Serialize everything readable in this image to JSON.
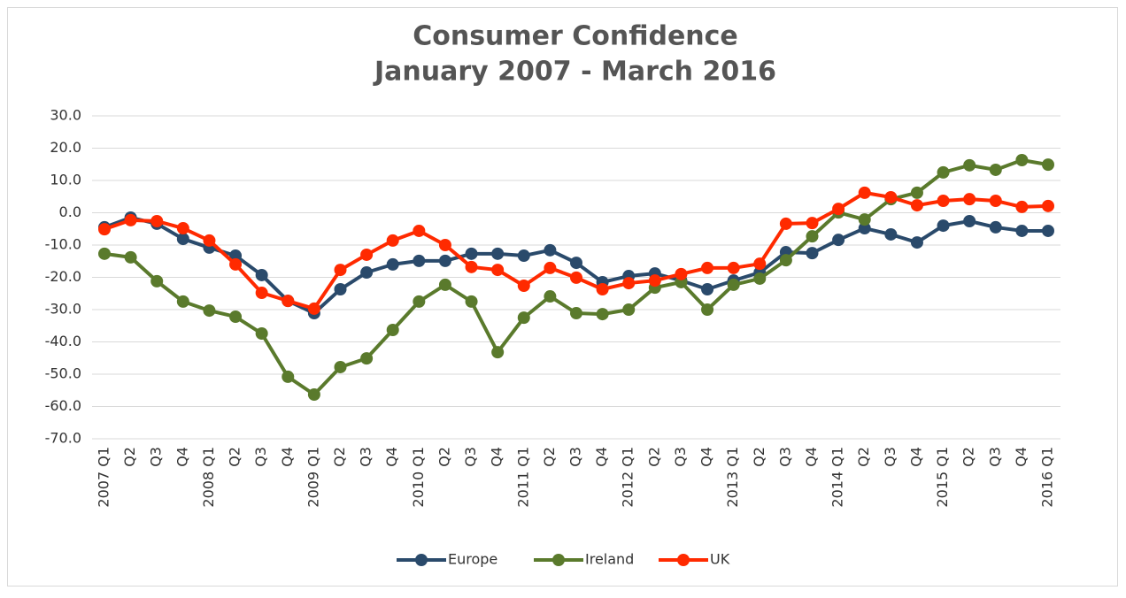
{
  "chart_data": {
    "type": "line",
    "title": "Consumer Confidence",
    "subtitle": "January 2007 - March 2016",
    "categories": [
      "2007 Q1",
      "Q2",
      "Q3",
      "Q4",
      "2008 Q1",
      "Q2",
      "Q3",
      "Q4",
      "2009 Q1",
      "Q2",
      "Q3",
      "Q4",
      "2010 Q1",
      "Q2",
      "Q3",
      "Q4",
      "2011 Q1",
      "Q2",
      "Q3",
      "Q4",
      "2012 Q1",
      "Q2",
      "Q3",
      "Q4",
      "2013 Q1",
      "Q2",
      "Q3",
      "Q4",
      "2014 Q1",
      "Q2",
      "Q3",
      "Q4",
      "2015 Q1",
      "Q2",
      "Q3",
      "Q4",
      "2016 Q1"
    ],
    "series": [
      {
        "name": "Europe",
        "color": "#2a4a6b",
        "values": [
          -4.5,
          -1.5,
          -3.4,
          -8.1,
          -10.8,
          -13.3,
          -19.3,
          -27.3,
          -31.1,
          -23.7,
          -18.5,
          -16.0,
          -14.9,
          -14.9,
          -12.7,
          -12.7,
          -13.3,
          -11.6,
          -15.5,
          -21.5,
          -19.6,
          -18.8,
          -21.0,
          -23.7,
          -21.0,
          -18.5,
          -12.2,
          -12.5,
          -8.4,
          -4.8,
          -6.7,
          -9.2,
          -4.0,
          -2.6,
          -4.5,
          -5.6,
          -5.6
        ]
      },
      {
        "name": "Ireland",
        "color": "#5a7a2c",
        "values": [
          -12.7,
          -13.8,
          -21.2,
          -27.5,
          -30.3,
          -32.2,
          -37.4,
          -50.8,
          -56.3,
          -47.8,
          -45.1,
          -36.3,
          -27.5,
          -22.3,
          -27.5,
          -43.2,
          -32.5,
          -25.9,
          -31.1,
          -31.4,
          -30.0,
          -23.2,
          -21.5,
          -30.0,
          -22.3,
          -20.4,
          -14.7,
          -7.3,
          0.1,
          -2.1,
          4.2,
          6.2,
          12.5,
          14.7,
          13.3,
          16.3,
          14.9
        ]
      },
      {
        "name": "UK",
        "color": "#ff2a00",
        "values": [
          -5.1,
          -2.3,
          -2.6,
          -4.8,
          -8.6,
          -16.0,
          -24.8,
          -27.3,
          -29.7,
          -17.7,
          -13.0,
          -8.6,
          -5.6,
          -10.0,
          -16.8,
          -17.7,
          -22.6,
          -17.1,
          -20.1,
          -23.7,
          -21.8,
          -21.0,
          -19.0,
          -17.1,
          -17.1,
          -15.8,
          -3.4,
          -3.2,
          1.2,
          6.2,
          4.8,
          2.3,
          3.7,
          4.2,
          3.7,
          1.8,
          2.1
        ]
      }
    ],
    "ylim": [
      -70,
      30
    ],
    "yticks": [
      {
        "value": -70,
        "label": "-70.0"
      },
      {
        "value": -60,
        "label": "-60.0"
      },
      {
        "value": -50,
        "label": "-50.0"
      },
      {
        "value": -40,
        "label": "-40.0"
      },
      {
        "value": -30,
        "label": "-30.0"
      },
      {
        "value": -20,
        "label": "-20.0"
      },
      {
        "value": -10,
        "label": "-10.0"
      },
      {
        "value": 0,
        "label": "0.0"
      },
      {
        "value": 10,
        "label": "10.0"
      },
      {
        "value": 20,
        "label": "20.0"
      },
      {
        "value": 30,
        "label": "30.0"
      }
    ],
    "grid": true,
    "legend": "bottom"
  }
}
